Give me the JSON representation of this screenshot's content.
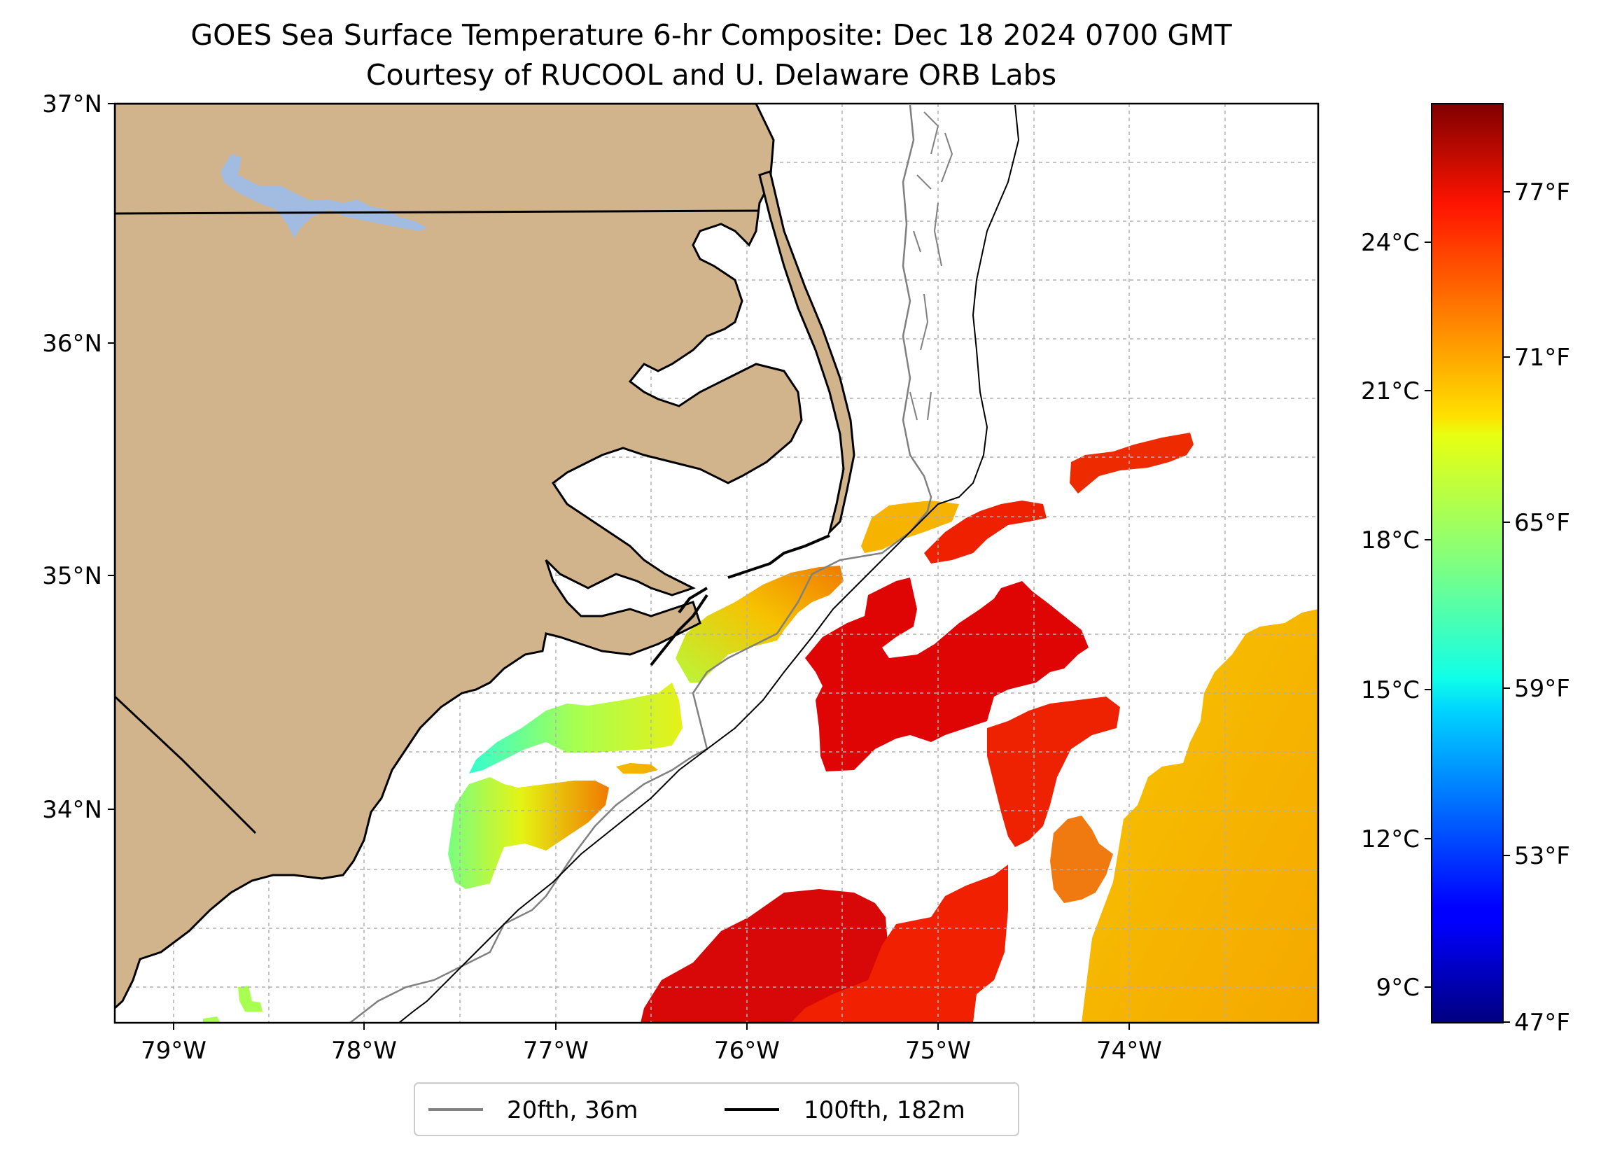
{
  "title": {
    "line1": "GOES Sea Surface Temperature 6-hr Composite: Dec 18 2024 0700 GMT",
    "line2": "Courtesy of RUCOOL and U. Delaware ORB Labs"
  },
  "map": {
    "lat_labels": [
      "37°N",
      "36°N",
      "35°N",
      "34°N"
    ],
    "lon_labels": [
      "79°W",
      "78°W",
      "77°W",
      "76°W",
      "75°W",
      "74°W"
    ],
    "lat_range": [
      33.1,
      37.0
    ],
    "lon_range": [
      -79.3,
      -73.15
    ],
    "land_color": "#d2b48c",
    "lake_color": "#a1bce0",
    "gridlines": true
  },
  "colorbar": {
    "celsius_ticks": [
      "24°C",
      "21°C",
      "18°C",
      "15°C",
      "12°C",
      "9°C"
    ],
    "fahrenheit_ticks": [
      "77°F",
      "71°F",
      "65°F",
      "59°F",
      "53°F",
      "47°F"
    ],
    "cmap": "jet",
    "range_c": [
      8.3,
      26.9
    ]
  },
  "legend": {
    "items": [
      {
        "label": "20fth, 36m",
        "color": "#808080"
      },
      {
        "label": "100fth, 182m",
        "color": "#000000"
      }
    ]
  }
}
